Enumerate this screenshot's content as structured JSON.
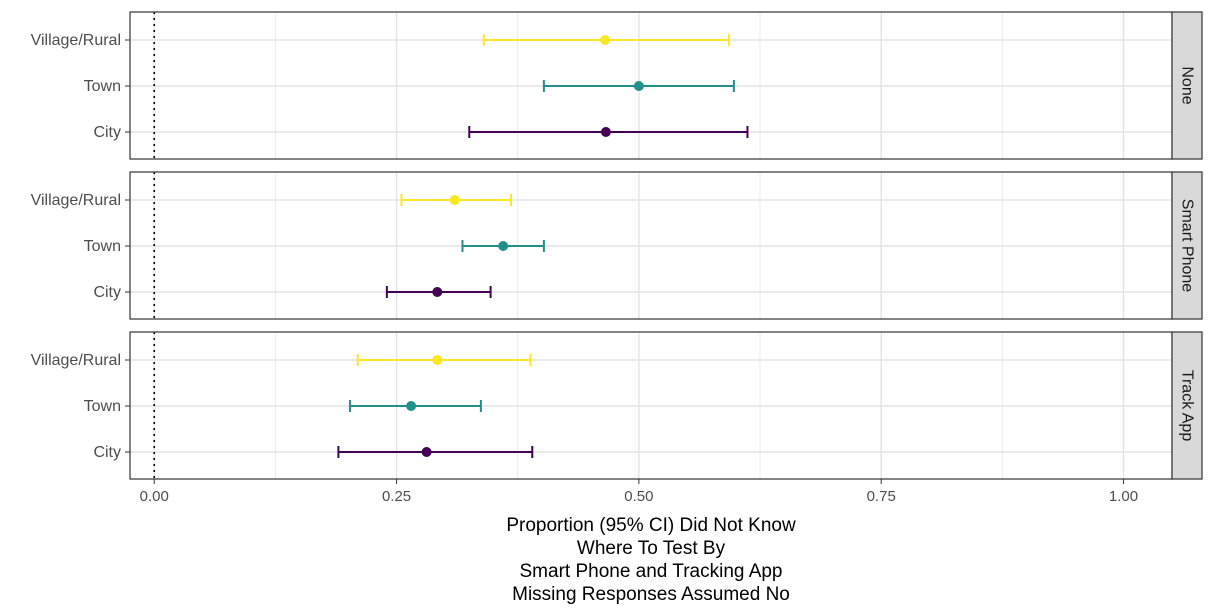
{
  "chart_data": {
    "type": "errorbar",
    "xlabel": [
      "Proportion (95% CI) Did Not Know",
      "Where To Test By",
      "Smart Phone and Tracking App",
      "Missing Responses Assumed No"
    ],
    "xlim": [
      -0.025,
      1.05
    ],
    "x_ticks": [
      {
        "value": 0,
        "label": "0.00"
      },
      {
        "value": 0.25,
        "label": "0.25"
      },
      {
        "value": 0.5,
        "label": "0.50"
      },
      {
        "value": 0.75,
        "label": "0.75"
      },
      {
        "value": 1,
        "label": "1.00"
      }
    ],
    "reference_line": {
      "x": 0,
      "style": "dotted"
    },
    "categories": [
      "Village/Rural",
      "Town",
      "City"
    ],
    "category_colors": {
      "Village/Rural": "#fde725",
      "Town": "#21908c",
      "City": "#440154"
    },
    "panels": [
      {
        "label": "None",
        "points": [
          {
            "category": "Village/Rural",
            "estimate": 0.465,
            "lower": 0.34,
            "upper": 0.593
          },
          {
            "category": "Town",
            "estimate": 0.5,
            "lower": 0.402,
            "upper": 0.598
          },
          {
            "category": "City",
            "estimate": 0.466,
            "lower": 0.325,
            "upper": 0.612
          }
        ]
      },
      {
        "label": "Smart Phone",
        "points": [
          {
            "category": "Village/Rural",
            "estimate": 0.31,
            "lower": 0.255,
            "upper": 0.368
          },
          {
            "category": "Town",
            "estimate": 0.36,
            "lower": 0.318,
            "upper": 0.402
          },
          {
            "category": "City",
            "estimate": 0.292,
            "lower": 0.24,
            "upper": 0.347
          }
        ]
      },
      {
        "label": "Track App",
        "points": [
          {
            "category": "Village/Rural",
            "estimate": 0.292,
            "lower": 0.21,
            "upper": 0.388
          },
          {
            "category": "Town",
            "estimate": 0.265,
            "lower": 0.202,
            "upper": 0.337
          },
          {
            "category": "City",
            "estimate": 0.281,
            "lower": 0.19,
            "upper": 0.39
          }
        ]
      }
    ],
    "grid": true,
    "legend": "none"
  }
}
